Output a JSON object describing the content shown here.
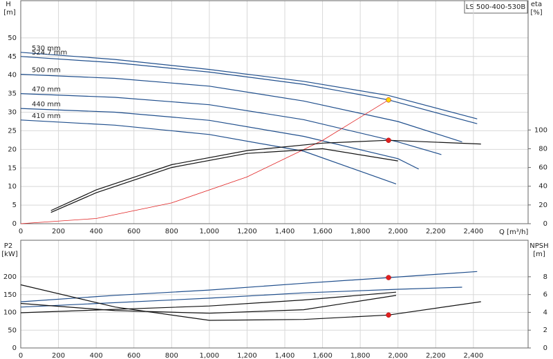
{
  "chart_data": [
    {
      "type": "line",
      "model": "LS 500-400-530B",
      "y_label": "H",
      "y_unit": "[m]",
      "y2_label": "eta",
      "y2_unit": "[%]",
      "x_label": "Q [m³/h]",
      "xlim": [
        0,
        2690
      ],
      "xticks": [
        0,
        200,
        400,
        600,
        800,
        {
          "value": 1000,
          "label": "1,000"
        },
        {
          "value": 1200,
          "label": "1,200"
        },
        {
          "value": 1400,
          "label": "1,400"
        },
        {
          "value": 1600,
          "label": "1,600"
        },
        {
          "value": 1800,
          "label": "1,800"
        },
        {
          "value": 2000,
          "label": "2,000"
        },
        {
          "value": 2200,
          "label": "2,200"
        },
        {
          "value": 2400,
          "label": "2,400"
        }
      ],
      "ylim": [
        0,
        60
      ],
      "yticks": [
        0,
        5,
        10,
        15,
        20,
        25,
        30,
        35,
        40,
        45,
        50
      ],
      "y2lim": [
        0,
        238
      ],
      "y2ticks": [
        0,
        20,
        40,
        60,
        80,
        100
      ],
      "grid": true,
      "series": [
        {
          "name": "530 mm",
          "color": "#1f4e8c",
          "x": [
            0,
            500,
            1000,
            1500,
            1950,
            2420
          ],
          "values": [
            46.1,
            44.2,
            41.5,
            38.3,
            34.5,
            28.2
          ]
        },
        {
          "name": "524.7 mm",
          "color": "#1f4e8c",
          "x": [
            0,
            500,
            1000,
            1500,
            1950,
            2420
          ],
          "values": [
            45.0,
            43.3,
            40.8,
            37.5,
            33.3,
            26.9
          ]
        },
        {
          "name": "500 mm",
          "color": "#1f4e8c",
          "x": [
            0,
            500,
            1000,
            1500,
            2000,
            2340
          ],
          "values": [
            40.2,
            39.1,
            37.0,
            33.0,
            27.5,
            22.0
          ]
        },
        {
          "name": "470 mm",
          "color": "#1f4e8c",
          "x": [
            0,
            500,
            1000,
            1500,
            2000,
            2230
          ],
          "values": [
            35.0,
            34.0,
            32.0,
            28.0,
            22.0,
            18.6
          ]
        },
        {
          "name": "440 mm",
          "color": "#1f4e8c",
          "x": [
            0,
            500,
            1000,
            1500,
            2000,
            2110
          ],
          "values": [
            31.0,
            30.0,
            27.8,
            23.5,
            17.5,
            14.7
          ]
        },
        {
          "name": "410 mm",
          "color": "#1f4e8c",
          "x": [
            0,
            500,
            1000,
            1500,
            1990
          ],
          "values": [
            27.9,
            26.5,
            24.0,
            19.5,
            10.7
          ]
        },
        {
          "color": "#e02020",
          "x": [
            0,
            400,
            800,
            1200,
            1600,
            1950
          ],
          "values": [
            0,
            1.4,
            5.6,
            12.6,
            22.4,
            33.3
          ]
        },
        {
          "color": "#111111",
          "axis": "y2",
          "x": [
            160,
            400,
            800,
            1200,
            1600,
            1950,
            2440
          ],
          "values": [
            14,
            36,
            63,
            78,
            86,
            89,
            85
          ]
        },
        {
          "color": "#111111",
          "axis": "y2",
          "x": [
            160,
            400,
            800,
            1200,
            1600,
            2000
          ],
          "values": [
            12,
            33,
            60,
            75,
            80,
            67
          ]
        }
      ],
      "markers": [
        {
          "x": 1950,
          "value": 33.3,
          "color": "#ffd700"
        },
        {
          "x": 1950,
          "value": 89,
          "color": "#e02020",
          "axis": "y2"
        }
      ]
    },
    {
      "type": "line",
      "y_label": "P2",
      "y_unit": "[kW]",
      "y2_label": "NPSH",
      "y2_unit": "[m]",
      "xlim": [
        0,
        2690
      ],
      "xticks": [
        0,
        200,
        400,
        600,
        800,
        {
          "value": 1000,
          "label": "1,000"
        },
        {
          "value": 1200,
          "label": "1,200"
        },
        {
          "value": 1400,
          "label": "1,400"
        },
        {
          "value": 1600,
          "label": "1,600"
        },
        {
          "value": 1800,
          "label": "1,800"
        },
        {
          "value": 2000,
          "label": "2,000"
        },
        {
          "value": 2200,
          "label": "2,200"
        },
        {
          "value": 2400,
          "label": "2,400"
        }
      ],
      "ylim": [
        0,
        303
      ],
      "yticks": [
        0,
        50,
        100,
        150,
        200
      ],
      "y2lim": [
        0,
        12.1
      ],
      "y2ticks": [
        0,
        2,
        4,
        6,
        8
      ],
      "grid": true,
      "series": [
        {
          "color": "#1f4e8c",
          "x": [
            0,
            500,
            1000,
            1500,
            1950,
            2420
          ],
          "values": [
            130,
            148,
            163,
            182,
            198,
            215
          ]
        },
        {
          "color": "#1f4e8c",
          "x": [
            0,
            1000,
            1500,
            2000,
            2340
          ],
          "values": [
            115,
            140,
            155,
            165,
            171
          ]
        },
        {
          "color": "#111111",
          "x": [
            0,
            1000,
            1500,
            1990
          ],
          "values": [
            99,
            118,
            135,
            157
          ]
        },
        {
          "color": "#111111",
          "axis": "y2",
          "x": [
            0,
            500,
            1000,
            1500,
            1950,
            2440
          ],
          "values": [
            7.1,
            4.6,
            3.1,
            3.2,
            3.7,
            5.2
          ]
        },
        {
          "color": "#111111",
          "axis": "y2",
          "x": [
            0,
            500,
            1000,
            1500,
            1990
          ],
          "values": [
            5.0,
            4.2,
            3.9,
            4.3,
            5.9
          ]
        }
      ],
      "markers": [
        {
          "x": 1950,
          "value": 198,
          "color": "#e02020"
        },
        {
          "x": 1950,
          "value": 3.7,
          "color": "#e02020",
          "axis": "y2"
        }
      ]
    }
  ]
}
